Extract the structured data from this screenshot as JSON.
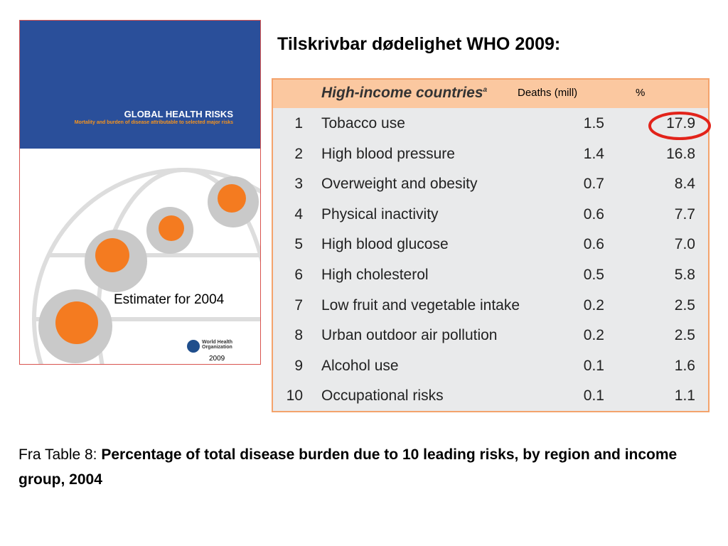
{
  "title": "Tilskrivbar dødelighet WHO 2009:",
  "cover": {
    "title": "GLOBAL HEALTH RISKS",
    "subtitle": "Mortality and burden of disease attributable to selected major risks",
    "note": "Estimater for 2004",
    "publisher": "World Health Organization",
    "year": "2009"
  },
  "table": {
    "group": "High-income countries",
    "footnote_mark": "a",
    "col_deaths": "Deaths (mill)",
    "col_percent": "%",
    "rows": [
      [
        "1",
        "Tobacco use",
        "1.5",
        "17.9"
      ],
      [
        "2",
        "High blood pressure",
        "1.4",
        "16.8"
      ],
      [
        "3",
        "Overweight and obesity",
        "0.7",
        "8.4"
      ],
      [
        "4",
        "Physical inactivity",
        "0.6",
        "7.7"
      ],
      [
        "5",
        "High blood glucose",
        "0.6",
        "7.0"
      ],
      [
        "6",
        "High cholesterol",
        "0.5",
        "5.8"
      ],
      [
        "7",
        "Low fruit and vegetable intake",
        "0.2",
        "2.5"
      ],
      [
        "8",
        "Urban outdoor air pollution",
        "0.2",
        "2.5"
      ],
      [
        "9",
        "Alcohol use",
        "0.1",
        "1.6"
      ],
      [
        "10",
        "Occupational risks",
        "0.1",
        "1.1"
      ]
    ]
  },
  "caption": {
    "prefix": "Fra Table 8:",
    "text": "Percentage of total disease burden due to 10 leading risks, by region and income group, 2004"
  }
}
